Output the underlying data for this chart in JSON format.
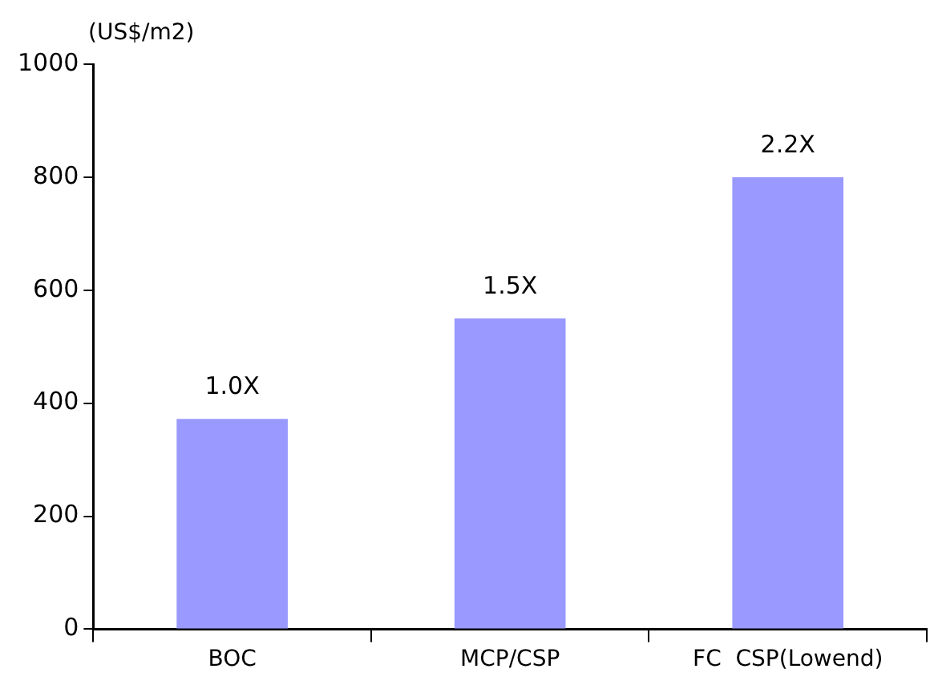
{
  "chart_data": {
    "type": "bar",
    "ylabel": "(US$/m2)",
    "categories": [
      "BOC",
      "MCP/CSP",
      "FC  CSP(Lowend)"
    ],
    "values": [
      372,
      550,
      800
    ],
    "color": "#9999ff",
    "annotations": [
      {
        "text": "1.0X",
        "x": "BOC",
        "y": 372
      },
      {
        "text": "1.5X",
        "x": "MCP/CSP",
        "y": 550
      },
      {
        "text": "2.2X",
        "x": "FC  CSP(Lowend)",
        "y": 800
      }
    ],
    "ylim": [
      0,
      1000
    ],
    "yticks": [
      0,
      200,
      400,
      600,
      800,
      1000
    ],
    "grid": false,
    "legend": false
  }
}
